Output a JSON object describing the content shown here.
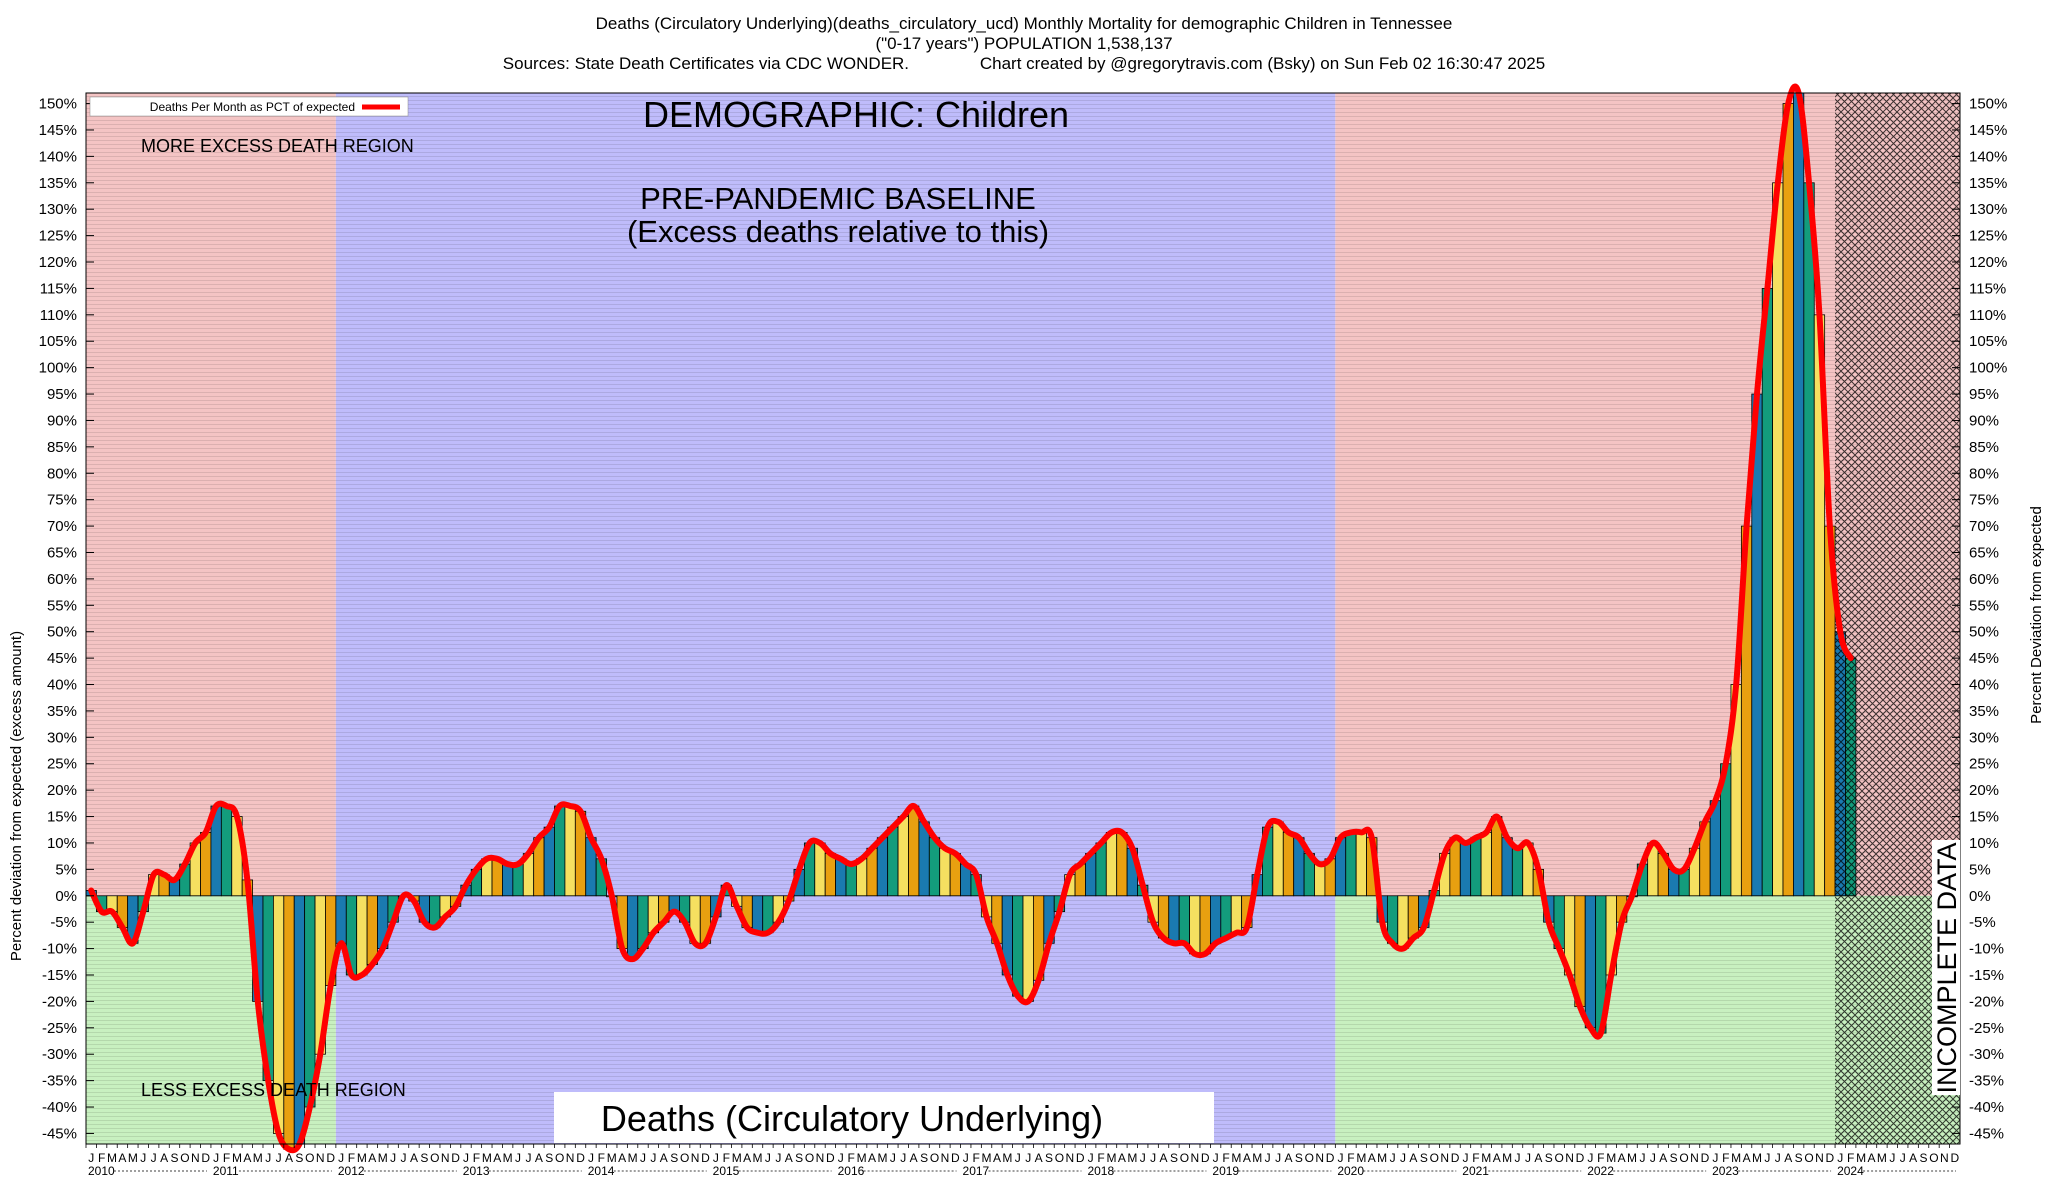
{
  "title": {
    "line1": "Deaths (Circulatory Underlying)(deaths_circulatory_ucd) Monthly Mortality for demographic Children in Tennessee",
    "line2": "(\"0-17 years\") POPULATION 1,538,137",
    "line3": "Sources: State Death Certificates via CDC WONDER.               Chart created by @gregorytravis.com (Bsky) on Sun Feb 02 16:30:47 2025"
  },
  "legend": {
    "label": "Deaths Per Month as PCT of expected"
  },
  "annotations": {
    "demographic": "DEMOGRAPHIC: Children",
    "baseline_line1": "PRE-PANDEMIC BASELINE",
    "baseline_line2": "(Excess deaths relative to this)",
    "more_excess": "MORE EXCESS DEATH REGION",
    "less_excess": "LESS EXCESS DEATH REGION",
    "incomplete": "INCOMPLETE DATA",
    "cause": "Deaths (Circulatory Underlying)"
  },
  "colors": {
    "excess_region": "#f4c4c4",
    "deficit_region": "#c8f0c0",
    "baseline_region": "#bfbcfb",
    "line": "#ff0000",
    "bar_palette": [
      "#1a7ab0",
      "#139c7c",
      "#f5e060",
      "#e8a010"
    ]
  },
  "chart_data": {
    "type": "bar",
    "ylabel": "Percent deviation from expected (excess amount)",
    "ylabel_right": "Percent Deviation from expected",
    "ylim": [
      -47,
      152
    ],
    "yticks": [
      -45,
      -40,
      -35,
      -30,
      -25,
      -20,
      -15,
      -10,
      -5,
      0,
      5,
      10,
      15,
      20,
      25,
      30,
      35,
      40,
      45,
      50,
      55,
      60,
      65,
      70,
      75,
      80,
      85,
      90,
      95,
      100,
      105,
      110,
      115,
      120,
      125,
      130,
      135,
      140,
      145,
      150
    ],
    "month_letters": [
      "J",
      "F",
      "M",
      "A",
      "M",
      "J",
      "J",
      "A",
      "S",
      "O",
      "N",
      "D"
    ],
    "years": [
      "2010",
      "2011",
      "2012",
      "2013",
      "2014",
      "2015",
      "2016",
      "2017",
      "2018",
      "2019",
      "2020",
      "2021",
      "2022",
      "2023",
      "2024"
    ],
    "baseline_years": [
      "2012",
      "2019"
    ],
    "incomplete_from": "2024",
    "series": [
      {
        "values": [
          1,
          -3,
          -3,
          -6,
          -9,
          -3,
          4,
          4,
          3,
          6,
          10,
          12,
          17,
          17,
          15,
          3,
          -20,
          -35,
          -45,
          -48,
          -47,
          -40,
          -30,
          -17,
          -9,
          -15,
          -15,
          -13,
          -10,
          -5,
          0,
          -1,
          -5,
          -6,
          -4,
          -2,
          2,
          5,
          7,
          7,
          6,
          6,
          8,
          11,
          13,
          17,
          17,
          16,
          11,
          7,
          0,
          -10,
          -12,
          -10,
          -7,
          -5,
          -3,
          -5,
          -9,
          -9,
          -4,
          2,
          -2,
          -6,
          -7,
          -7,
          -5,
          -1,
          5,
          10,
          10,
          8,
          7,
          6,
          7,
          9,
          11,
          13,
          15,
          17,
          14,
          11,
          9,
          8,
          6,
          4,
          -4,
          -9,
          -15,
          -19,
          -20,
          -16,
          -9,
          -3,
          4,
          6,
          8,
          10,
          12,
          12,
          9,
          2,
          -5,
          -8,
          -9,
          -9,
          -11,
          -11,
          -9,
          -8,
          -7,
          -6,
          4,
          13,
          14,
          12,
          11,
          8,
          6,
          7,
          11,
          12,
          12,
          11,
          -5,
          -9,
          -10,
          -8,
          -6,
          1,
          8,
          11,
          10,
          11,
          12,
          15,
          11,
          9,
          10,
          5,
          -5,
          -10,
          -15,
          -21,
          -25,
          -26,
          -15,
          -5,
          0,
          6,
          10,
          8,
          5,
          5,
          9,
          14,
          18,
          25,
          40,
          70,
          95,
          115,
          135,
          150,
          152,
          135,
          110,
          70,
          50,
          45
        ]
      }
    ]
  }
}
